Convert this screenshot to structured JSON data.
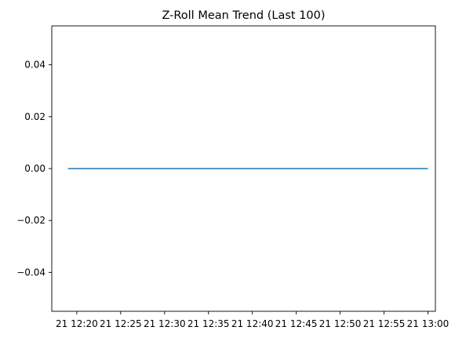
{
  "chart_data": {
    "type": "line",
    "title": "Z-Roll Mean Trend (Last 100)",
    "xlabel": "",
    "ylabel": "",
    "x_ticks": [
      "21 12:20",
      "21 12:25",
      "21 12:30",
      "21 12:35",
      "21 12:40",
      "21 12:45",
      "21 12:50",
      "21 12:55",
      "21 13:00"
    ],
    "y_ticks": [
      "0.04",
      "0.02",
      "0.00",
      "−0.02",
      "−0.04"
    ],
    "y_tick_values": [
      0.04,
      0.02,
      0.0,
      -0.02,
      -0.04
    ],
    "ylim": [
      -0.055,
      0.055
    ],
    "xlim": [
      "12:17:09",
      "13:00:51"
    ],
    "series": [
      {
        "x": [
          "12:19",
          "13:00"
        ],
        "y": [
          0.0,
          0.0
        ],
        "color": "#1f77b4"
      }
    ],
    "grid": false,
    "legend": "none"
  }
}
